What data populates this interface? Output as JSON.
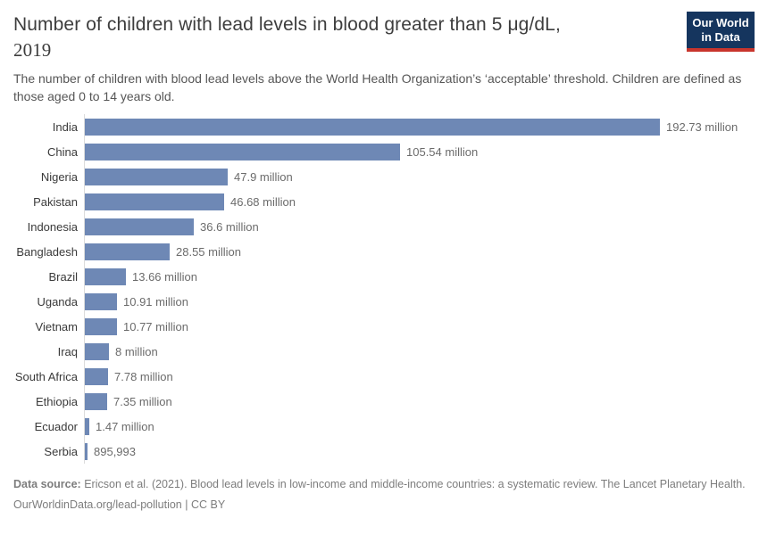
{
  "colors": {
    "bar": "#6e88b5",
    "logo_bg": "#15355e",
    "logo_accent": "#c8352d",
    "axis_line": "#dcdcdc"
  },
  "header": {
    "title_line1": "Number of children with lead levels in blood greater than 5 μg/dL,",
    "title_line2": "2019",
    "subtitle": "The number of children with blood lead levels above the World Health Organization’s ‘acceptable’ threshold. Children are defined as those aged 0 to 14 years old.",
    "logo_line1": "Our World",
    "logo_line2": "in Data"
  },
  "chart_data": {
    "type": "bar",
    "orientation": "horizontal",
    "title": "Number of children with lead levels in blood greater than 5 μg/dL, 2019",
    "xlabel": "",
    "ylabel": "",
    "xlim": [
      0,
      192.73
    ],
    "unit": "million children",
    "grid": false,
    "legend": false,
    "categories": [
      "India",
      "China",
      "Nigeria",
      "Pakistan",
      "Indonesia",
      "Bangladesh",
      "Brazil",
      "Uganda",
      "Vietnam",
      "Iraq",
      "South Africa",
      "Ethiopia",
      "Ecuador",
      "Serbia"
    ],
    "values_millions": [
      192.73,
      105.54,
      47.9,
      46.68,
      36.6,
      28.55,
      13.66,
      10.91,
      10.77,
      8,
      7.78,
      7.35,
      1.47,
      0.895993
    ],
    "value_labels": [
      "192.73 million",
      "105.54 million",
      "47.9 million",
      "46.68 million",
      "36.6 million",
      "28.55 million",
      "13.66 million",
      "10.91 million",
      "10.77 million",
      "8 million",
      "7.78 million",
      "7.35 million",
      "1.47 million",
      "895,993"
    ]
  },
  "footer": {
    "datasource_label": "Data source:",
    "datasource_text": "Ericson et al. (2021). Blood lead levels in low-income and middle-income countries: a systematic review. The Lancet Planetary Health.",
    "url": "OurWorldinData.org/lead-pollution",
    "separator": "|",
    "license": "CC BY"
  }
}
